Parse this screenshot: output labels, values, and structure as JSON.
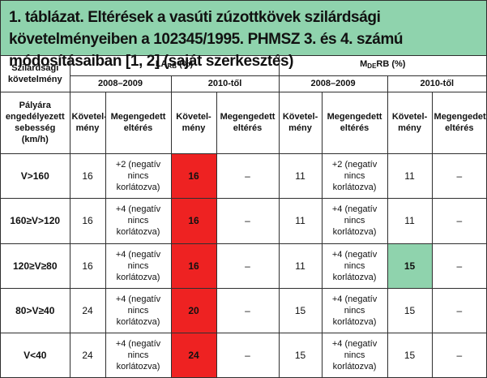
{
  "caption": "1. táblázat. Eltérések a vasúti zúzottkövek szilárdsági követelményeiben a 102345/1995. PHMSZ 3. és 4. számú módosításaiban [1, 2] (saját szerkesztés)",
  "header": {
    "requirement_label": "Szilárdsági követelmény",
    "speed_label": "Pályára engedélyezett sebesség (km/h)",
    "la_main": "LA",
    "la_sub": "RB",
    "la_unit": " (%)",
    "mde_main": "M",
    "mde_sub": "DE",
    "mde_rest": "RB (%)",
    "period_1": "2008–2009",
    "period_2": "2010-től",
    "col_requirement": "Követel-mény",
    "col_deviation": "Megengedett eltérés"
  },
  "highlight_colors": {
    "red": "#ee2222",
    "green": "#8fd3ad",
    "caption_bg": "#8fd3ad"
  },
  "rows": [
    {
      "speed": "V>160",
      "la_2008_req": "16",
      "la_2008_dev": "+2 (negatív nincs korlátozva)",
      "la_2010_req": "16",
      "la_2010_dev": "–",
      "mde_2008_req": "11",
      "mde_2008_dev": "+2 (negatív nincs korlátozva)",
      "mde_2010_req": "11",
      "mde_2010_dev": "–"
    },
    {
      "speed": "160≥V>120",
      "la_2008_req": "16",
      "la_2008_dev": "+4 (negatív nincs korlátozva)",
      "la_2010_req": "16",
      "la_2010_dev": "–",
      "mde_2008_req": "11",
      "mde_2008_dev": "+4 (negatív nincs korlátozva)",
      "mde_2010_req": "11",
      "mde_2010_dev": "–"
    },
    {
      "speed": "120≥V≥80",
      "la_2008_req": "16",
      "la_2008_dev": "+4 (negatív nincs korlátozva)",
      "la_2010_req": "16",
      "la_2010_dev": "–",
      "mde_2008_req": "11",
      "mde_2008_dev": "+4 (negatív nincs korlátozva)",
      "mde_2010_req": "15",
      "mde_2010_dev": "–"
    },
    {
      "speed": "80>V≥40",
      "la_2008_req": "24",
      "la_2008_dev": "+4 (negatív nincs korlátozva)",
      "la_2010_req": "20",
      "la_2010_dev": "–",
      "mde_2008_req": "15",
      "mde_2008_dev": "+4 (negatív nincs korlátozva)",
      "mde_2010_req": "15",
      "mde_2010_dev": "–"
    },
    {
      "speed": "V<40",
      "la_2008_req": "24",
      "la_2008_dev": "+4 (negatív nincs korlátozva)",
      "la_2010_req": "24",
      "la_2010_dev": "–",
      "mde_2008_req": "15",
      "mde_2008_dev": "+4 (negatív nincs korlátozva)",
      "mde_2010_req": "15",
      "mde_2010_dev": "–"
    }
  ]
}
